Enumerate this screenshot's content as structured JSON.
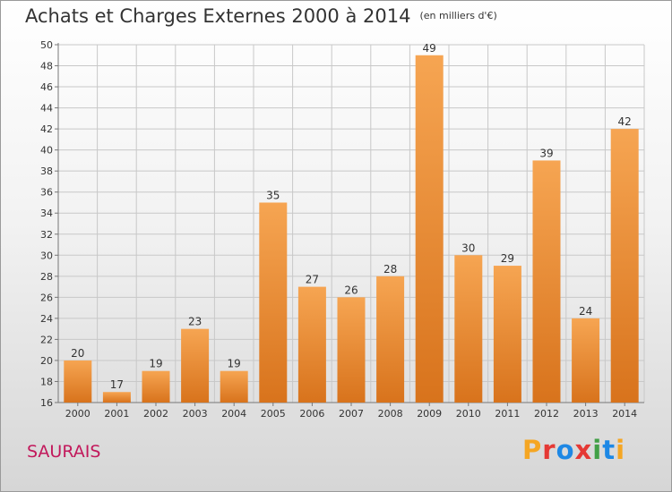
{
  "header": {
    "title": "Achats et Charges Externes 2000 à 2014",
    "unit": "(en milliers d'€)"
  },
  "footer": {
    "commune": "SAURAIS",
    "logo": "Proxiti"
  },
  "logo_colors": [
    "#f5a623",
    "#e53935",
    "#1e88e5",
    "#e53935",
    "#43a047",
    "#1e88e5",
    "#f5a623"
  ],
  "colors": {
    "bar_light": "#f6a552",
    "bar_dark": "#d8731c",
    "grid": "#c8c8c8",
    "commune": "#c2185b"
  },
  "chart_data": {
    "type": "bar",
    "title": "Achats et Charges Externes 2000 à 2014",
    "subtitle": "(en milliers d'€)",
    "xlabel": "",
    "ylabel": "",
    "categories": [
      "2000",
      "2001",
      "2002",
      "2003",
      "2004",
      "2005",
      "2006",
      "2007",
      "2008",
      "2009",
      "2010",
      "2011",
      "2012",
      "2013",
      "2014"
    ],
    "values": [
      20,
      17,
      19,
      23,
      19,
      35,
      27,
      26,
      28,
      49,
      30,
      29,
      39,
      24,
      42
    ],
    "ylim": [
      16,
      50
    ],
    "yticks": [
      16,
      18,
      20,
      22,
      24,
      26,
      28,
      30,
      32,
      34,
      36,
      38,
      40,
      42,
      44,
      46,
      48,
      50
    ],
    "grid": true,
    "legend": "none"
  }
}
